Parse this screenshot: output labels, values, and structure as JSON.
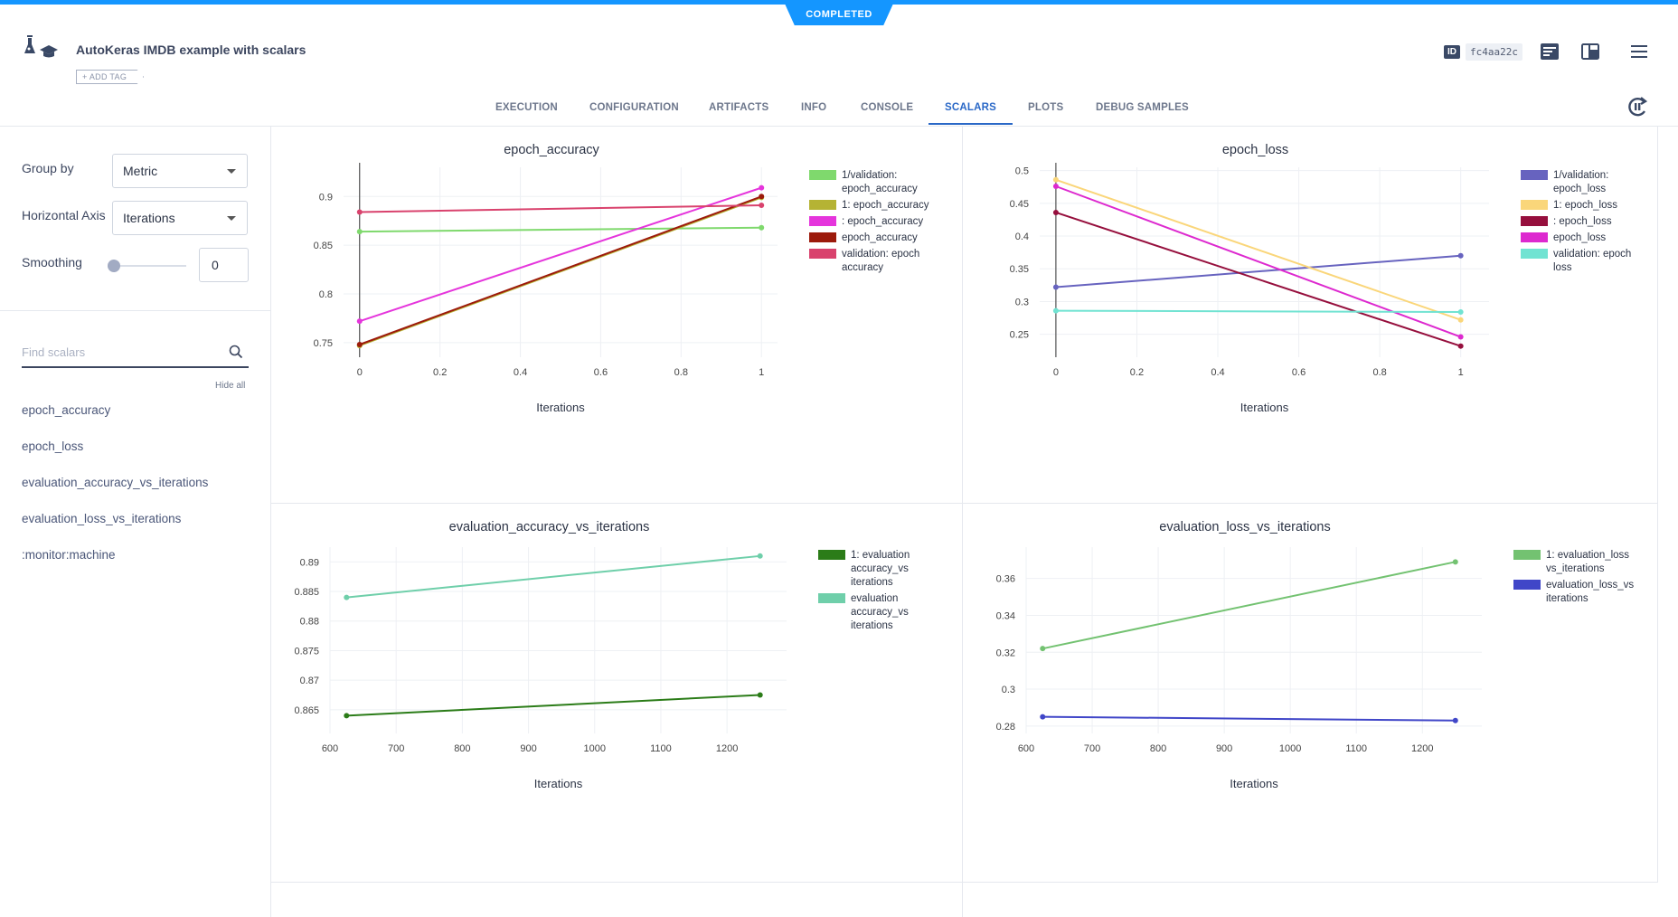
{
  "status": "COMPLETED",
  "experiment": {
    "title": "AutoKeras IMDB example with scalars",
    "add_tag": "+ ADD TAG"
  },
  "id": {
    "badge": "ID",
    "value": "fc4aa22c"
  },
  "tabs": [
    "EXECUTION",
    "CONFIGURATION",
    "ARTIFACTS",
    "INFO",
    "CONSOLE",
    "SCALARS",
    "PLOTS",
    "DEBUG SAMPLES"
  ],
  "active_tab": "SCALARS",
  "sidebar": {
    "group_by_label": "Group by",
    "group_by_value": "Metric",
    "horizontal_axis_label": "Horizontal Axis",
    "horizontal_axis_value": "Iterations",
    "smoothing_label": "Smoothing",
    "smoothing_value": "0",
    "search_placeholder": "Find scalars",
    "hide_all": "Hide all",
    "metrics": [
      "epoch_accuracy",
      "epoch_loss",
      "evaluation_accuracy_vs_iterations",
      "evaluation_loss_vs_iterations",
      ":monitor:machine"
    ]
  },
  "chart_data": [
    {
      "type": "line",
      "title": "epoch_accuracy",
      "xlabel": "Iterations",
      "ylabel": "",
      "xlim": [
        -0.04,
        1.04
      ],
      "ylim": [
        0.735,
        0.93
      ],
      "xticks": [
        0,
        0.2,
        0.4,
        0.6,
        0.8,
        1
      ],
      "xtick_labels": [
        "0",
        "0.2",
        "0.4",
        "0.6",
        "0.8",
        "1"
      ],
      "yticks": [
        0.75,
        0.8,
        0.85,
        0.9
      ],
      "ytick_labels": [
        "0.75",
        "0.8",
        "0.85",
        "0.9"
      ],
      "legend_position": "right",
      "series": [
        {
          "name": "1/validation: epoch_accuracy",
          "color": "#7fd96d",
          "x": [
            0,
            1
          ],
          "y": [
            0.864,
            0.868
          ]
        },
        {
          "name": "1: epoch_accuracy",
          "color": "#b5b334",
          "x": [
            0,
            1
          ],
          "y": [
            0.747,
            0.899
          ]
        },
        {
          "name": ": epoch_accuracy",
          "color": "#e535dc",
          "x": [
            0,
            1
          ],
          "y": [
            0.772,
            0.909
          ]
        },
        {
          "name": "epoch_accuracy",
          "color": "#9c1a0b",
          "x": [
            0,
            1
          ],
          "y": [
            0.748,
            0.9
          ]
        },
        {
          "name": "validation: epoch accuracy",
          "color": "#d9426d",
          "x": [
            0,
            1
          ],
          "y": [
            0.884,
            0.891
          ]
        }
      ]
    },
    {
      "type": "line",
      "title": "epoch_loss",
      "xlabel": "Iterations",
      "ylabel": "",
      "xlim": [
        -0.04,
        1.07
      ],
      "ylim": [
        0.215,
        0.505
      ],
      "xticks": [
        0,
        0.2,
        0.4,
        0.6,
        0.8,
        1
      ],
      "xtick_labels": [
        "0",
        "0.2",
        "0.4",
        "0.6",
        "0.8",
        "1"
      ],
      "yticks": [
        0.25,
        0.3,
        0.35,
        0.4,
        0.45,
        0.5
      ],
      "ytick_labels": [
        "0.25",
        "0.3",
        "0.35",
        "0.4",
        "0.45",
        "0.5"
      ],
      "legend_position": "right",
      "series": [
        {
          "name": "1/validation: epoch_loss",
          "color": "#6763bf",
          "x": [
            0,
            1
          ],
          "y": [
            0.322,
            0.37
          ]
        },
        {
          "name": "1: epoch_loss",
          "color": "#fad67a",
          "x": [
            0,
            1
          ],
          "y": [
            0.486,
            0.272
          ]
        },
        {
          "name": ": epoch_loss",
          "color": "#960f3d",
          "x": [
            0,
            1
          ],
          "y": [
            0.436,
            0.232
          ]
        },
        {
          "name": "epoch_loss",
          "color": "#dd29cf",
          "x": [
            0,
            1
          ],
          "y": [
            0.476,
            0.246
          ]
        },
        {
          "name": "validation: epoch loss",
          "color": "#71e3d2",
          "x": [
            0,
            1
          ],
          "y": [
            0.286,
            0.284
          ]
        }
      ]
    },
    {
      "type": "line",
      "title": "evaluation_accuracy_vs_iterations",
      "xlabel": "Iterations",
      "ylabel": "",
      "xlim": [
        600,
        1290
      ],
      "ylim": [
        0.861,
        0.8925
      ],
      "xticks": [
        600,
        700,
        800,
        900,
        1000,
        1100,
        1200
      ],
      "xtick_labels": [
        "600",
        "700",
        "800",
        "900",
        "1000",
        "1100",
        "1200"
      ],
      "yticks": [
        0.865,
        0.87,
        0.875,
        0.88,
        0.885,
        0.89
      ],
      "ytick_labels": [
        "0.865",
        "0.87",
        "0.875",
        "0.88",
        "0.885",
        "0.89"
      ],
      "legend_position": "right",
      "series": [
        {
          "name": "1: evaluation accuracy_vs iterations",
          "color": "#2b7c18",
          "x": [
            625,
            1250
          ],
          "y": [
            0.864,
            0.8675
          ]
        },
        {
          "name": "evaluation accuracy_vs iterations",
          "color": "#6fcfaa",
          "x": [
            625,
            1250
          ],
          "y": [
            0.884,
            0.891
          ]
        }
      ]
    },
    {
      "type": "line",
      "title": "evaluation_loss_vs_iterations",
      "xlabel": "Iterations",
      "ylabel": "",
      "xlim": [
        600,
        1290
      ],
      "ylim": [
        0.276,
        0.377
      ],
      "xticks": [
        600,
        700,
        800,
        900,
        1000,
        1100,
        1200
      ],
      "xtick_labels": [
        "600",
        "700",
        "800",
        "900",
        "1000",
        "1100",
        "1200"
      ],
      "yticks": [
        0.28,
        0.3,
        0.32,
        0.34,
        0.36
      ],
      "ytick_labels": [
        "0.28",
        "0.3",
        "0.32",
        "0.34",
        "0.36"
      ],
      "legend_position": "right",
      "series": [
        {
          "name": "1: evaluation_loss vs_iterations",
          "color": "#73c271",
          "x": [
            625,
            1250
          ],
          "y": [
            0.322,
            0.369
          ]
        },
        {
          "name": "evaluation_loss_vs iterations",
          "color": "#4046c8",
          "x": [
            625,
            1250
          ],
          "y": [
            0.285,
            0.283
          ]
        }
      ]
    }
  ]
}
